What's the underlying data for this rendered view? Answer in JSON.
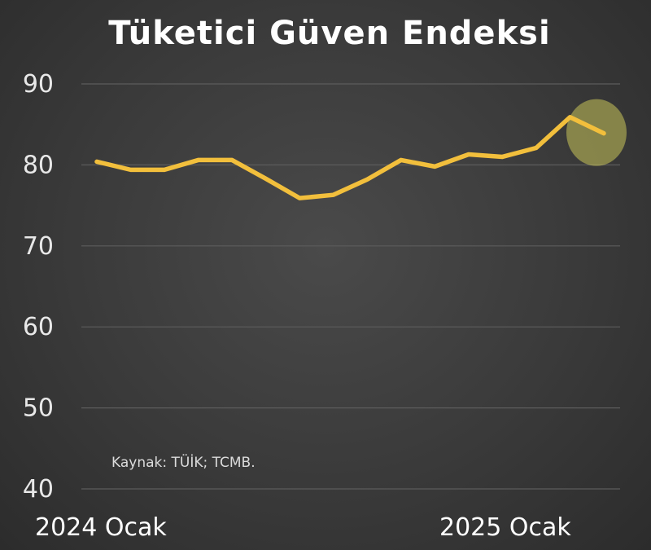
{
  "chart_data": {
    "type": "line",
    "title": "Tüketici Güven Endeksi",
    "x": [
      "2024-01",
      "2024-02",
      "2024-03",
      "2024-04",
      "2024-05",
      "2024-06",
      "2024-07",
      "2024-08",
      "2024-09",
      "2024-10",
      "2024-11",
      "2024-12",
      "2025-01",
      "2025-02",
      "2025-03",
      "2025-04"
    ],
    "x_tick_labels": [
      "2024 Ocak",
      "2025 Ocak"
    ],
    "series": [
      {
        "values": [
          80.4,
          79.4,
          79.4,
          80.6,
          80.6,
          78.3,
          75.9,
          76.3,
          78.2,
          80.6,
          79.8,
          81.3,
          81.0,
          82.1,
          85.9,
          83.9
        ]
      }
    ],
    "ylim": [
      40,
      90
    ],
    "yticks": [
      40,
      50,
      60,
      70,
      80,
      90
    ],
    "grid": true,
    "line_color": "#f2bf3c",
    "highlight_color": "#c8c45a",
    "highlight_point": "last",
    "annotation": "Kaynak: TÜİK; TCMB."
  }
}
